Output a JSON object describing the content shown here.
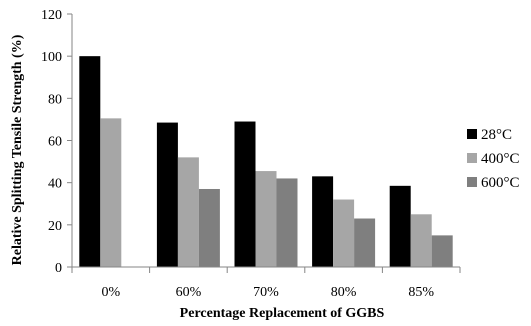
{
  "chart_data": {
    "type": "bar",
    "title": "",
    "xlabel": "Percentage Replacement of GGBS",
    "ylabel": "Relative Splitting Tensile Strength (%)",
    "ylim": [
      0,
      120
    ],
    "yticks": [
      "0",
      "20",
      "40",
      "60",
      "80",
      "100",
      "120"
    ],
    "categories": [
      "0%",
      "60%",
      "70%",
      "80%",
      "85%"
    ],
    "grid": false,
    "legend_position": "right",
    "series": [
      {
        "name": "28°C",
        "color": "#000000",
        "values": [
          100,
          68.5,
          69,
          43,
          38.5
        ]
      },
      {
        "name": "400°C",
        "color": "#a6a6a6",
        "values": [
          70.5,
          52,
          45.5,
          32,
          25
        ]
      },
      {
        "name": "600°C",
        "color": "#7f7f7f",
        "values": [
          null,
          37,
          42,
          23,
          15
        ]
      }
    ]
  }
}
